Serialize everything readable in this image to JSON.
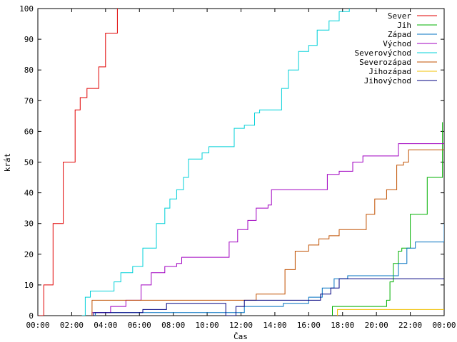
{
  "chart_data": {
    "type": "line",
    "xlabel": "Čas",
    "ylabel": "krát",
    "xlim": [
      0,
      24
    ],
    "ylim": [
      0,
      100
    ],
    "grid": false,
    "legend_position": "top-right",
    "x_ticks": [
      {
        "value": 0,
        "label": "00:00"
      },
      {
        "value": 2,
        "label": "02:00"
      },
      {
        "value": 4,
        "label": "04:00"
      },
      {
        "value": 6,
        "label": "06:00"
      },
      {
        "value": 8,
        "label": "08:00"
      },
      {
        "value": 10,
        "label": "10:00"
      },
      {
        "value": 12,
        "label": "12:00"
      },
      {
        "value": 14,
        "label": "14:00"
      },
      {
        "value": 16,
        "label": "16:00"
      },
      {
        "value": 18,
        "label": "18:00"
      },
      {
        "value": 20,
        "label": "20:00"
      },
      {
        "value": 22,
        "label": "22:00"
      },
      {
        "value": 24,
        "label": "00:00"
      }
    ],
    "y_ticks": [
      0,
      10,
      20,
      30,
      40,
      50,
      60,
      70,
      80,
      90,
      100
    ],
    "series": [
      {
        "name": "Sever",
        "color": "#e00000",
        "points": [
          [
            0.05,
            0
          ],
          [
            0.35,
            10
          ],
          [
            0.9,
            30
          ],
          [
            1.5,
            50
          ],
          [
            2.2,
            67
          ],
          [
            2.5,
            71
          ],
          [
            2.9,
            74
          ],
          [
            3.4,
            74
          ],
          [
            3.6,
            81
          ],
          [
            4.0,
            92
          ],
          [
            4.4,
            92
          ],
          [
            4.7,
            100
          ]
        ]
      },
      {
        "name": "Jih",
        "color": "#00b000",
        "points": [
          [
            17.4,
            0
          ],
          [
            17.4,
            3
          ],
          [
            20.4,
            3
          ],
          [
            20.6,
            5
          ],
          [
            20.8,
            11
          ],
          [
            21.0,
            17
          ],
          [
            21.3,
            21
          ],
          [
            21.5,
            22
          ],
          [
            22.0,
            33
          ],
          [
            22.4,
            33
          ],
          [
            23.0,
            45
          ],
          [
            23.9,
            63
          ]
        ]
      },
      {
        "name": "Západ",
        "color": "#0070c0",
        "points": [
          [
            3.4,
            0
          ],
          [
            3.4,
            1
          ],
          [
            12.2,
            1
          ],
          [
            12.2,
            3
          ],
          [
            14.3,
            3
          ],
          [
            14.5,
            4
          ],
          [
            16.0,
            6
          ],
          [
            16.8,
            9
          ],
          [
            17.5,
            12
          ],
          [
            18.3,
            13
          ],
          [
            21.0,
            13
          ],
          [
            21.3,
            17
          ],
          [
            21.8,
            22
          ],
          [
            22.3,
            24
          ],
          [
            23.6,
            24
          ],
          [
            24.0,
            30
          ]
        ]
      },
      {
        "name": "Východ",
        "color": "#a000c0",
        "points": [
          [
            3.2,
            0
          ],
          [
            3.2,
            1
          ],
          [
            4.3,
            3
          ],
          [
            5.2,
            5
          ],
          [
            6.1,
            10
          ],
          [
            6.7,
            14
          ],
          [
            7.5,
            16
          ],
          [
            8.2,
            17
          ],
          [
            8.5,
            19
          ],
          [
            10.6,
            19
          ],
          [
            11.3,
            24
          ],
          [
            11.8,
            28
          ],
          [
            12.4,
            31
          ],
          [
            12.9,
            35
          ],
          [
            13.6,
            36
          ],
          [
            13.8,
            41
          ],
          [
            16.8,
            41
          ],
          [
            17.1,
            46
          ],
          [
            17.8,
            47
          ],
          [
            18.6,
            50
          ],
          [
            19.2,
            52
          ],
          [
            20.6,
            52
          ],
          [
            21.3,
            56
          ],
          [
            24.0,
            56
          ]
        ]
      },
      {
        "name": "Severovýchod",
        "color": "#00d0d8",
        "points": [
          [
            2.6,
            0
          ],
          [
            2.8,
            6
          ],
          [
            3.1,
            8
          ],
          [
            4.2,
            8
          ],
          [
            4.5,
            11
          ],
          [
            4.9,
            14
          ],
          [
            5.6,
            16
          ],
          [
            6.2,
            22
          ],
          [
            7.0,
            30
          ],
          [
            7.5,
            35
          ],
          [
            7.8,
            38
          ],
          [
            8.2,
            41
          ],
          [
            8.6,
            45
          ],
          [
            8.9,
            51
          ],
          [
            9.7,
            53
          ],
          [
            10.1,
            55
          ],
          [
            10.9,
            55
          ],
          [
            11.6,
            61
          ],
          [
            12.2,
            62
          ],
          [
            12.8,
            66
          ],
          [
            13.1,
            67
          ],
          [
            13.6,
            67
          ],
          [
            14.4,
            74
          ],
          [
            14.8,
            80
          ],
          [
            15.4,
            86
          ],
          [
            16.0,
            88
          ],
          [
            16.5,
            93
          ],
          [
            17.2,
            96
          ],
          [
            17.8,
            99
          ],
          [
            18.4,
            100
          ]
        ]
      },
      {
        "name": "Severozápad",
        "color": "#c05000",
        "points": [
          [
            3.2,
            0
          ],
          [
            3.2,
            5
          ],
          [
            12.6,
            5
          ],
          [
            12.9,
            7
          ],
          [
            14.1,
            7
          ],
          [
            14.6,
            15
          ],
          [
            15.2,
            21
          ],
          [
            16.0,
            23
          ],
          [
            16.6,
            25
          ],
          [
            17.2,
            26
          ],
          [
            17.8,
            28
          ],
          [
            18.9,
            28
          ],
          [
            19.4,
            33
          ],
          [
            19.9,
            38
          ],
          [
            20.6,
            41
          ],
          [
            21.2,
            49
          ],
          [
            21.6,
            50
          ],
          [
            21.9,
            54
          ],
          [
            24.0,
            54
          ]
        ]
      },
      {
        "name": "Jihozápad",
        "color": "#f0c000",
        "points": [
          [
            17.7,
            0
          ],
          [
            17.7,
            2
          ],
          [
            24.0,
            2
          ]
        ]
      },
      {
        "name": "Jihovýchod",
        "color": "#000080",
        "points": [
          [
            3.3,
            0
          ],
          [
            3.3,
            1
          ],
          [
            6.2,
            1
          ],
          [
            6.2,
            2
          ],
          [
            7.3,
            2
          ],
          [
            7.6,
            4
          ],
          [
            11.1,
            4
          ],
          [
            11.1,
            0
          ],
          [
            11.7,
            0
          ],
          [
            11.7,
            3
          ],
          [
            12.2,
            3
          ],
          [
            12.2,
            5
          ],
          [
            14.0,
            5
          ],
          [
            16.2,
            5
          ],
          [
            16.7,
            7
          ],
          [
            17.3,
            9
          ],
          [
            17.8,
            12
          ],
          [
            24.0,
            12
          ]
        ]
      }
    ]
  }
}
